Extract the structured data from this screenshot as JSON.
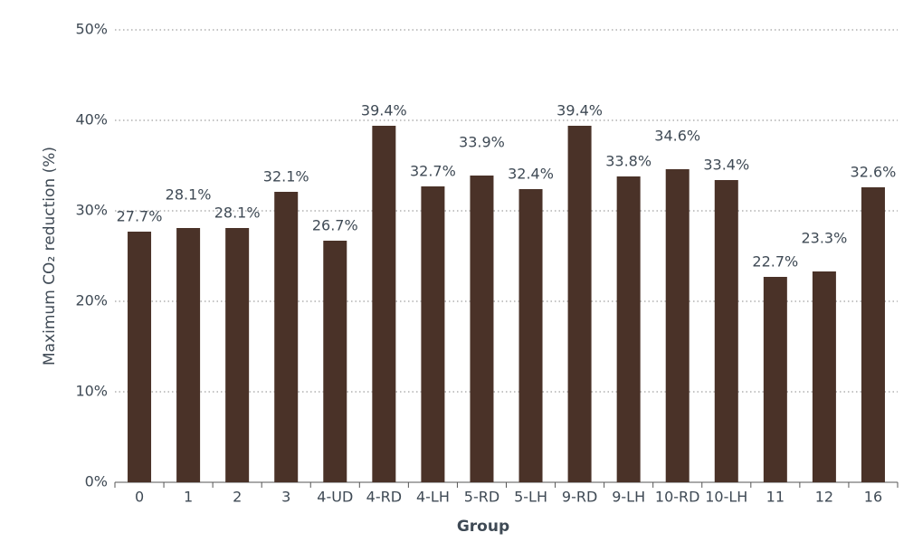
{
  "chart_data": {
    "type": "bar",
    "x_label": "Group",
    "y_label": "Maximum CO₂ reduction (%)",
    "categories": [
      "0",
      "1",
      "2",
      "3",
      "4-UD",
      "4-RD",
      "4-LH",
      "5-RD",
      "5-LH",
      "9-RD",
      "9-LH",
      "10-RD",
      "10-LH",
      "11",
      "12",
      "16"
    ],
    "values": [
      27.7,
      28.1,
      28.1,
      32.1,
      26.7,
      39.4,
      32.7,
      33.9,
      32.4,
      39.4,
      33.8,
      34.6,
      33.4,
      22.7,
      23.3,
      32.6
    ],
    "value_labels": [
      "27.7%",
      "28.1%",
      "28.1%",
      "32.1%",
      "26.7%",
      "39.4%",
      "32.7%",
      "33.9%",
      "32.4%",
      "39.4%",
      "33.8%",
      "34.6%",
      "33.4%",
      "22.7%",
      "23.3%",
      "32.6%"
    ],
    "color": "#4a3228",
    "ylim": [
      0,
      50
    ],
    "yticks": [
      {
        "value": 0,
        "label": "0%"
      },
      {
        "value": 10,
        "label": "10%"
      },
      {
        "value": 20,
        "label": "20%"
      },
      {
        "value": 30,
        "label": "30%"
      },
      {
        "value": 40,
        "label": "40%"
      },
      {
        "value": 50,
        "label": "50%"
      }
    ],
    "grid": true
  }
}
